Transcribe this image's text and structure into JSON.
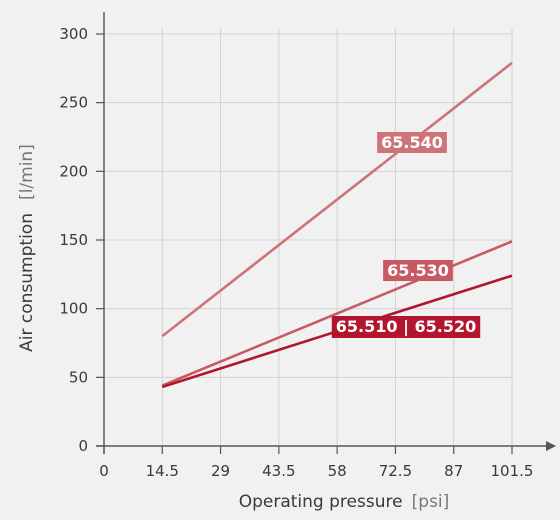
{
  "chart_data": {
    "type": "line",
    "xlabel": "Operating pressure",
    "xlabel_unit": "[psi]",
    "ylabel": "Air consumption",
    "ylabel_unit": "[l/min]",
    "x_ticks": [
      "0",
      "14.5",
      "29",
      "43.5",
      "58",
      "72.5",
      "87",
      "101.5"
    ],
    "y_ticks": [
      "0",
      "50",
      "100",
      "150",
      "200",
      "250",
      "300"
    ],
    "xlim": [
      0,
      101.5
    ],
    "ylim": [
      0,
      300
    ],
    "grid": true,
    "series": [
      {
        "name": "65.540",
        "color": "#cd7478",
        "x": [
          14.5,
          101.5
        ],
        "y": [
          80,
          279
        ]
      },
      {
        "name": "65.530",
        "color": "#c85963",
        "x": [
          14.5,
          101.5
        ],
        "y": [
          44,
          149
        ]
      },
      {
        "name": "65.510 | 65.520",
        "color": "#b3152e",
        "x": [
          14.5,
          101.5
        ],
        "y": [
          43,
          124
        ]
      }
    ]
  }
}
